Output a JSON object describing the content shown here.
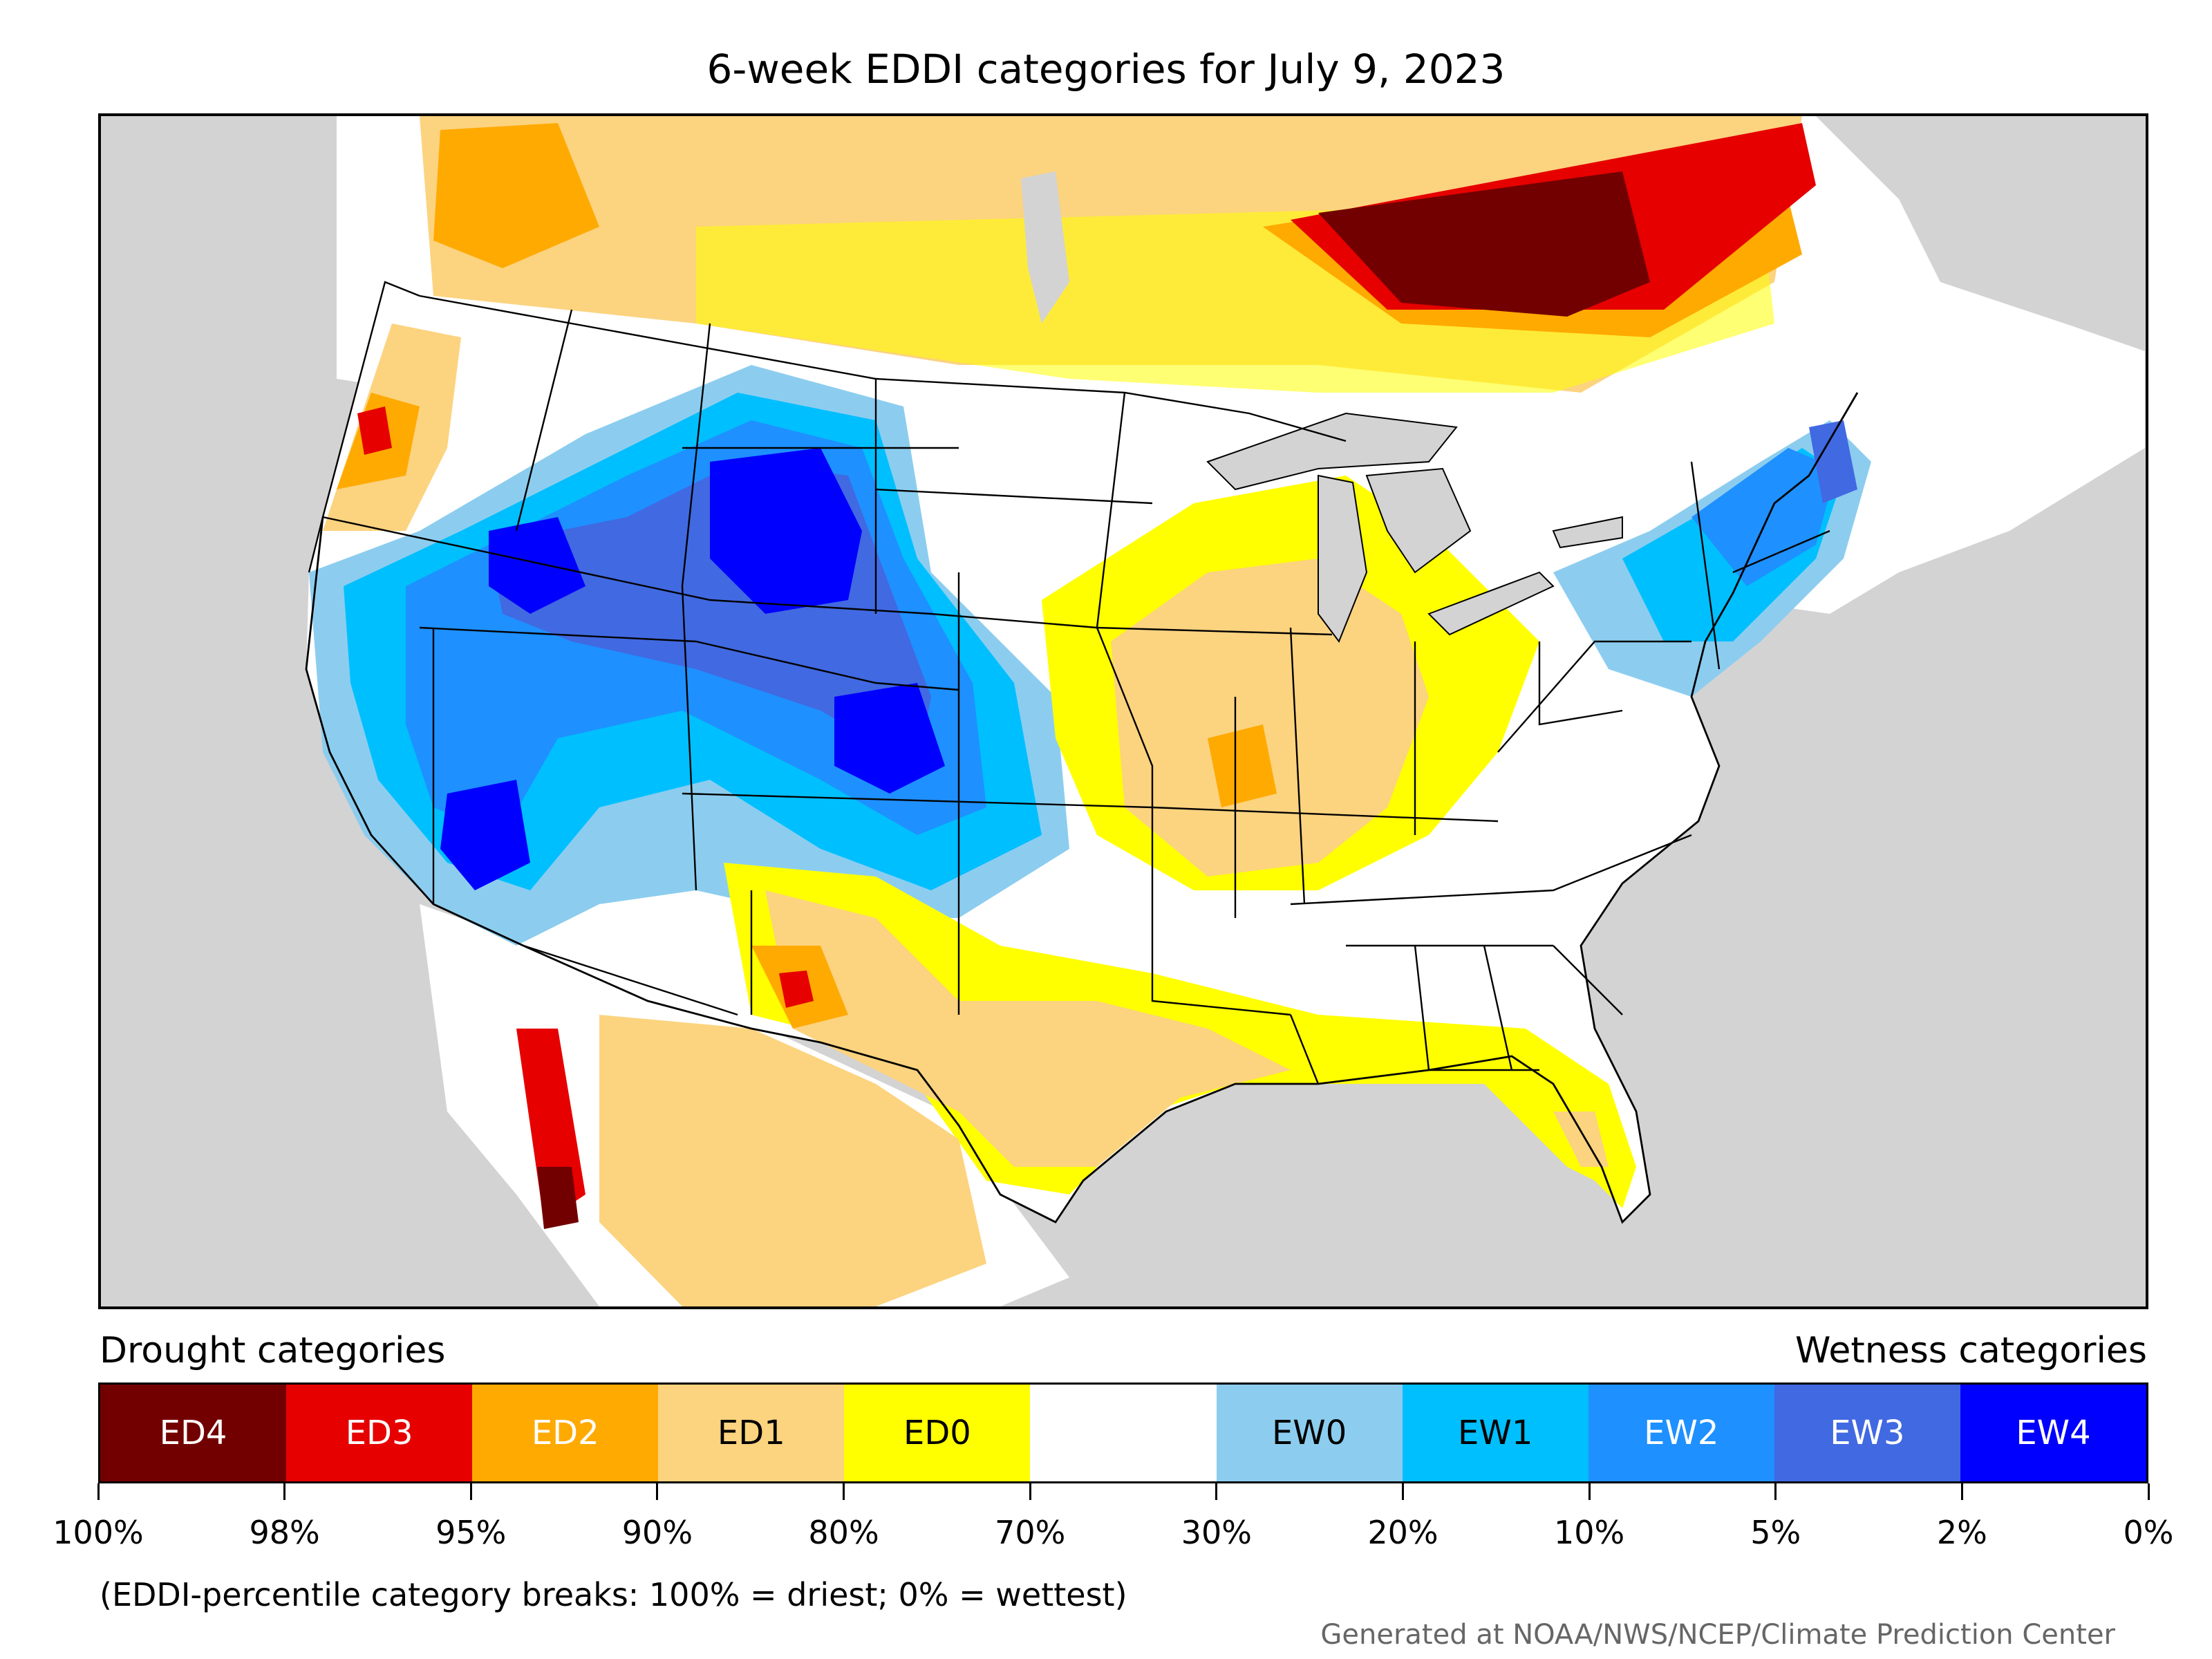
{
  "title": "6-week EDDI categories for July 9, 2023",
  "legend": {
    "drought_heading": "Drought categories",
    "wetness_heading": "Wetness categories",
    "categories": [
      {
        "label": "ED4",
        "color": "#730000",
        "text_color": "#ffffff"
      },
      {
        "label": "ED3",
        "color": "#e60000",
        "text_color": "#ffffff"
      },
      {
        "label": "ED2",
        "color": "#ffaa00",
        "text_color": "#ffffff"
      },
      {
        "label": "ED1",
        "color": "#fcd37f",
        "text_color": "#000000"
      },
      {
        "label": "ED0",
        "color": "#ffff00",
        "text_color": "#000000"
      },
      {
        "label": "",
        "color": "#ffffff",
        "text_color": "#000000"
      },
      {
        "label": "EW0",
        "color": "#8ccdef",
        "text_color": "#000000"
      },
      {
        "label": "EW1",
        "color": "#00bfff",
        "text_color": "#000000"
      },
      {
        "label": "EW2",
        "color": "#1e90ff",
        "text_color": "#ffffff"
      },
      {
        "label": "EW3",
        "color": "#4169e1",
        "text_color": "#ffffff"
      },
      {
        "label": "EW4",
        "color": "#0000ff",
        "text_color": "#ffffff"
      }
    ],
    "breaks": [
      "100%",
      "98%",
      "95%",
      "90%",
      "80%",
      "70%",
      "30%",
      "20%",
      "10%",
      "5%",
      "2%",
      "0%"
    ],
    "note": "(EDDI-percentile category breaks: 100% = driest; 0% = wettest)"
  },
  "credit": "Generated at NOAA/NWS/NCEP/Climate Prediction Center",
  "map": {
    "ocean_color": "#d3d3d3",
    "land_color": "#ffffff",
    "border_color": "#000000"
  }
}
